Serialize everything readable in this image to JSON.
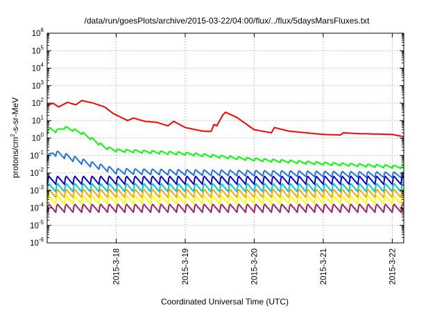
{
  "chart_data": {
    "type": "line",
    "title": "/data/run/goesPlots/archive/2015-03-22/04:00/flux/../flux/5daysMarsFluxes.txt",
    "xlabel": "Coordinated Universal Time (UTC)",
    "ylabel": "protons/cm2-s-sr-MeV",
    "y_scale": "log",
    "ylim": [
      1e-06,
      1000000.0
    ],
    "y_ticks": [
      {
        "base": "10",
        "exp": "-6",
        "value": 1e-06
      },
      {
        "base": "10",
        "exp": "-5",
        "value": 1e-05
      },
      {
        "base": "10",
        "exp": "-4",
        "value": 0.0001
      },
      {
        "base": "10",
        "exp": "-3",
        "value": 0.001
      },
      {
        "base": "10",
        "exp": "-2",
        "value": 0.01
      },
      {
        "base": "10",
        "exp": "-1",
        "value": 0.1
      },
      {
        "base": "10",
        "exp": "0",
        "value": 1
      },
      {
        "base": "10",
        "exp": "1",
        "value": 10
      },
      {
        "base": "10",
        "exp": "2",
        "value": 100
      },
      {
        "base": "10",
        "exp": "3",
        "value": 1000
      },
      {
        "base": "10",
        "exp": "4",
        "value": 10000
      },
      {
        "base": "10",
        "exp": "5",
        "value": 100000
      },
      {
        "base": "10",
        "exp": "6",
        "value": 1000000
      }
    ],
    "xlim": [
      "2015-03-17T00:00",
      "2015-03-22T04:00"
    ],
    "x_ticks": [
      {
        "label": "2015-3-18",
        "value": "2015-03-18T00:00"
      },
      {
        "label": "2015-3-19",
        "value": "2015-03-19T00:00"
      },
      {
        "label": "2015-3-20",
        "value": "2015-03-20T00:00"
      },
      {
        "label": "2015-3-21",
        "value": "2015-03-21T00:00"
      },
      {
        "label": "2015-3-22",
        "value": "2015-03-22T00:00"
      }
    ],
    "grid": true,
    "legend": false,
    "series": [
      {
        "color": "#ff0000",
        "points": [
          [
            "2015-03-17T00:00",
            70
          ],
          [
            "2015-03-17T02:00",
            100
          ],
          [
            "2015-03-17T04:00",
            60
          ],
          [
            "2015-03-17T07:00",
            110
          ],
          [
            "2015-03-17T10:00",
            80
          ],
          [
            "2015-03-17T12:00",
            140
          ],
          [
            "2015-03-17T16:00",
            100
          ],
          [
            "2015-03-17T20:00",
            60
          ],
          [
            "2015-03-17T23:00",
            25
          ],
          [
            "2015-03-18T04:00",
            10
          ],
          [
            "2015-03-18T06:00",
            14
          ],
          [
            "2015-03-18T10:00",
            9
          ],
          [
            "2015-03-18T14:00",
            8
          ],
          [
            "2015-03-18T18:00",
            5
          ],
          [
            "2015-03-18T20:00",
            9
          ],
          [
            "2015-03-19T00:00",
            4
          ],
          [
            "2015-03-19T06:00",
            2.5
          ],
          [
            "2015-03-19T09:00",
            2.4
          ],
          [
            "2015-03-19T10:00",
            6
          ],
          [
            "2015-03-19T11:00",
            5
          ],
          [
            "2015-03-19T12:00",
            10
          ],
          [
            "2015-03-19T13:00",
            20
          ],
          [
            "2015-03-19T14:00",
            30
          ],
          [
            "2015-03-19T18:00",
            15
          ],
          [
            "2015-03-20T00:00",
            3
          ],
          [
            "2015-03-20T06:00",
            2
          ],
          [
            "2015-03-20T07:00",
            4
          ],
          [
            "2015-03-20T12:00",
            2.5
          ],
          [
            "2015-03-21T00:00",
            1.6
          ],
          [
            "2015-03-21T06:00",
            1.5
          ],
          [
            "2015-03-21T07:00",
            2
          ],
          [
            "2015-03-21T12:00",
            1.8
          ],
          [
            "2015-03-22T00:00",
            1.6
          ],
          [
            "2015-03-22T04:00",
            1.2
          ]
        ]
      },
      {
        "color": "#00ff00",
        "points": [
          [
            "2015-03-17T00:00",
            2
          ],
          [
            "2015-03-17T01:00",
            3.5
          ],
          [
            "2015-03-17T03:00",
            2.5
          ],
          [
            "2015-03-17T06:00",
            4
          ],
          [
            "2015-03-17T09:00",
            3
          ],
          [
            "2015-03-17T12:00",
            2
          ],
          [
            "2015-03-17T16:00",
            0.8
          ],
          [
            "2015-03-17T20:00",
            0.3
          ],
          [
            "2015-03-18T00:00",
            0.2
          ],
          [
            "2015-03-19T00:00",
            0.13
          ],
          [
            "2015-03-20T00:00",
            0.06
          ],
          [
            "2015-03-21T00:00",
            0.035
          ],
          [
            "2015-03-22T04:00",
            0.022
          ]
        ]
      },
      {
        "color": "#1f6fe5",
        "points": [
          [
            "2015-03-17T00:00",
            0.07
          ],
          [
            "2015-03-17T02:00",
            0.15
          ],
          [
            "2015-03-17T06:00",
            0.1
          ],
          [
            "2015-03-17T10:00",
            0.06
          ],
          [
            "2015-03-17T16:00",
            0.03
          ],
          [
            "2015-03-18T00:00",
            0.013
          ],
          [
            "2015-03-19T00:00",
            0.011
          ],
          [
            "2015-03-20T00:00",
            0.01
          ],
          [
            "2015-03-21T00:00",
            0.009
          ],
          [
            "2015-03-22T04:00",
            0.008
          ]
        ]
      },
      {
        "color": "#0000e0",
        "points": [
          [
            "2015-03-17T00:00",
            0.004
          ],
          [
            "2015-03-22T04:00",
            0.004
          ]
        ]
      },
      {
        "color": "#00c8c8",
        "points": [
          [
            "2015-03-17T00:00",
            0.0015
          ],
          [
            "2015-03-22T04:00",
            0.0015
          ]
        ]
      },
      {
        "color": "#ffa500",
        "points": [
          [
            "2015-03-17T00:00",
            0.0007
          ],
          [
            "2015-03-22T04:00",
            0.0007
          ]
        ]
      },
      {
        "color": "#ffff00",
        "points": [
          [
            "2015-03-17T00:00",
            0.0003
          ],
          [
            "2015-03-22T04:00",
            0.0003
          ]
        ]
      },
      {
        "color": "#9a2070",
        "points": [
          [
            "2015-03-17T00:00",
            0.0001
          ],
          [
            "2015-03-22T04:00",
            0.0001
          ]
        ]
      }
    ]
  }
}
